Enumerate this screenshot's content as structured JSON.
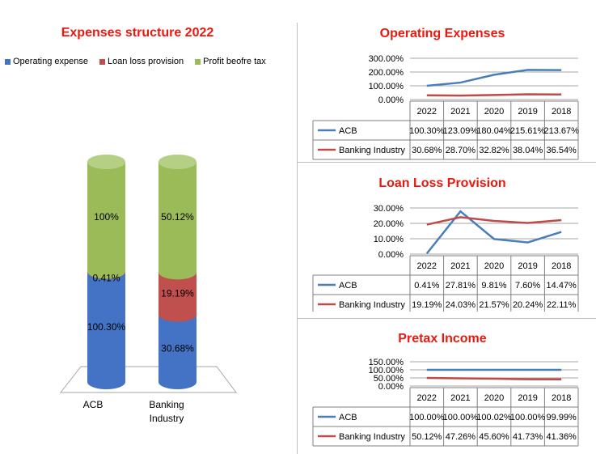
{
  "left": {
    "title": "Expenses structure 2022",
    "legend": [
      {
        "name": "Operating expense",
        "color": "#4472c4"
      },
      {
        "name": "Loan loss provision",
        "color": "#c0504d"
      },
      {
        "name": "Profit beofre tax",
        "color": "#9bbb59"
      }
    ],
    "categories": [
      "ACB",
      "Banking Industry"
    ],
    "footer_text": "* ... ..."
  },
  "series_colors": {
    "ACB": "#4a7ebb",
    "Banking Industry": "#be4b48"
  },
  "chart_data": [
    {
      "type": "bar",
      "stacked": true,
      "title": "Expenses structure 2022",
      "categories": [
        "ACB",
        "Banking Industry"
      ],
      "series": [
        {
          "name": "Operating expense",
          "values": [
            100.3,
            30.68
          ],
          "labels": [
            "100.30%",
            "30.68%"
          ]
        },
        {
          "name": "Loan loss provision",
          "values": [
            0.41,
            19.19
          ],
          "labels": [
            "0.41%",
            "19.19%"
          ]
        },
        {
          "name": "Profit beofre tax",
          "values": [
            100,
            50.12
          ],
          "labels": [
            "100%",
            "50.12%"
          ]
        }
      ],
      "legend_position": "top"
    },
    {
      "type": "line",
      "title": "Operating Expenses",
      "x": [
        "2022",
        "2021",
        "2020",
        "2019",
        "2018"
      ],
      "ylim": [
        0,
        300
      ],
      "yticks": [
        "300.00%",
        "200.00%",
        "100.00%",
        "0.00%"
      ],
      "series": [
        {
          "name": "ACB",
          "values": [
            100.3,
            123.09,
            180.04,
            215.61,
            213.67
          ],
          "labels": [
            "100.30%",
            "123.09%",
            "180.04%",
            "215.61%",
            "213.67%"
          ]
        },
        {
          "name": "Banking Industry",
          "values": [
            30.68,
            28.7,
            32.82,
            38.04,
            36.54
          ],
          "labels": [
            "30.68%",
            "28.70%",
            "32.82%",
            "38.04%",
            "36.54%"
          ]
        }
      ]
    },
    {
      "type": "line",
      "title": "Loan Loss Provision",
      "x": [
        "2022",
        "2021",
        "2020",
        "2019",
        "2018"
      ],
      "ylim": [
        0,
        30
      ],
      "yticks": [
        "30.00%",
        "20.00%",
        "10.00%",
        "0.00%"
      ],
      "series": [
        {
          "name": "ACB",
          "values": [
            0.41,
            27.81,
            9.81,
            7.6,
            14.47
          ],
          "labels": [
            "0.41%",
            "27.81%",
            "9.81%",
            "7.60%",
            "14.47%"
          ]
        },
        {
          "name": "Banking Industry",
          "values": [
            19.19,
            24.03,
            21.57,
            20.24,
            22.11
          ],
          "labels": [
            "19.19%",
            "24.03%",
            "21.57%",
            "20.24%",
            "22.11%"
          ]
        }
      ]
    },
    {
      "type": "line",
      "title": "Pretax Income",
      "x": [
        "2022",
        "2021",
        "2020",
        "2019",
        "2018"
      ],
      "ylim": [
        0,
        150
      ],
      "yticks": [
        "150.00%",
        "100.00%",
        "50.00%",
        "0.00%"
      ],
      "series": [
        {
          "name": "ACB",
          "values": [
            100.0,
            100.0,
            100.02,
            100.0,
            99.99
          ],
          "labels": [
            "100.00%",
            "100.00%",
            "100.02%",
            "100.00%",
            "99.99%"
          ]
        },
        {
          "name": "Banking Industry",
          "values": [
            50.12,
            47.26,
            45.6,
            41.73,
            41.36
          ],
          "labels": [
            "50.12%",
            "47.26%",
            "45.60%",
            "41.73%",
            "41.36%"
          ]
        }
      ]
    }
  ]
}
